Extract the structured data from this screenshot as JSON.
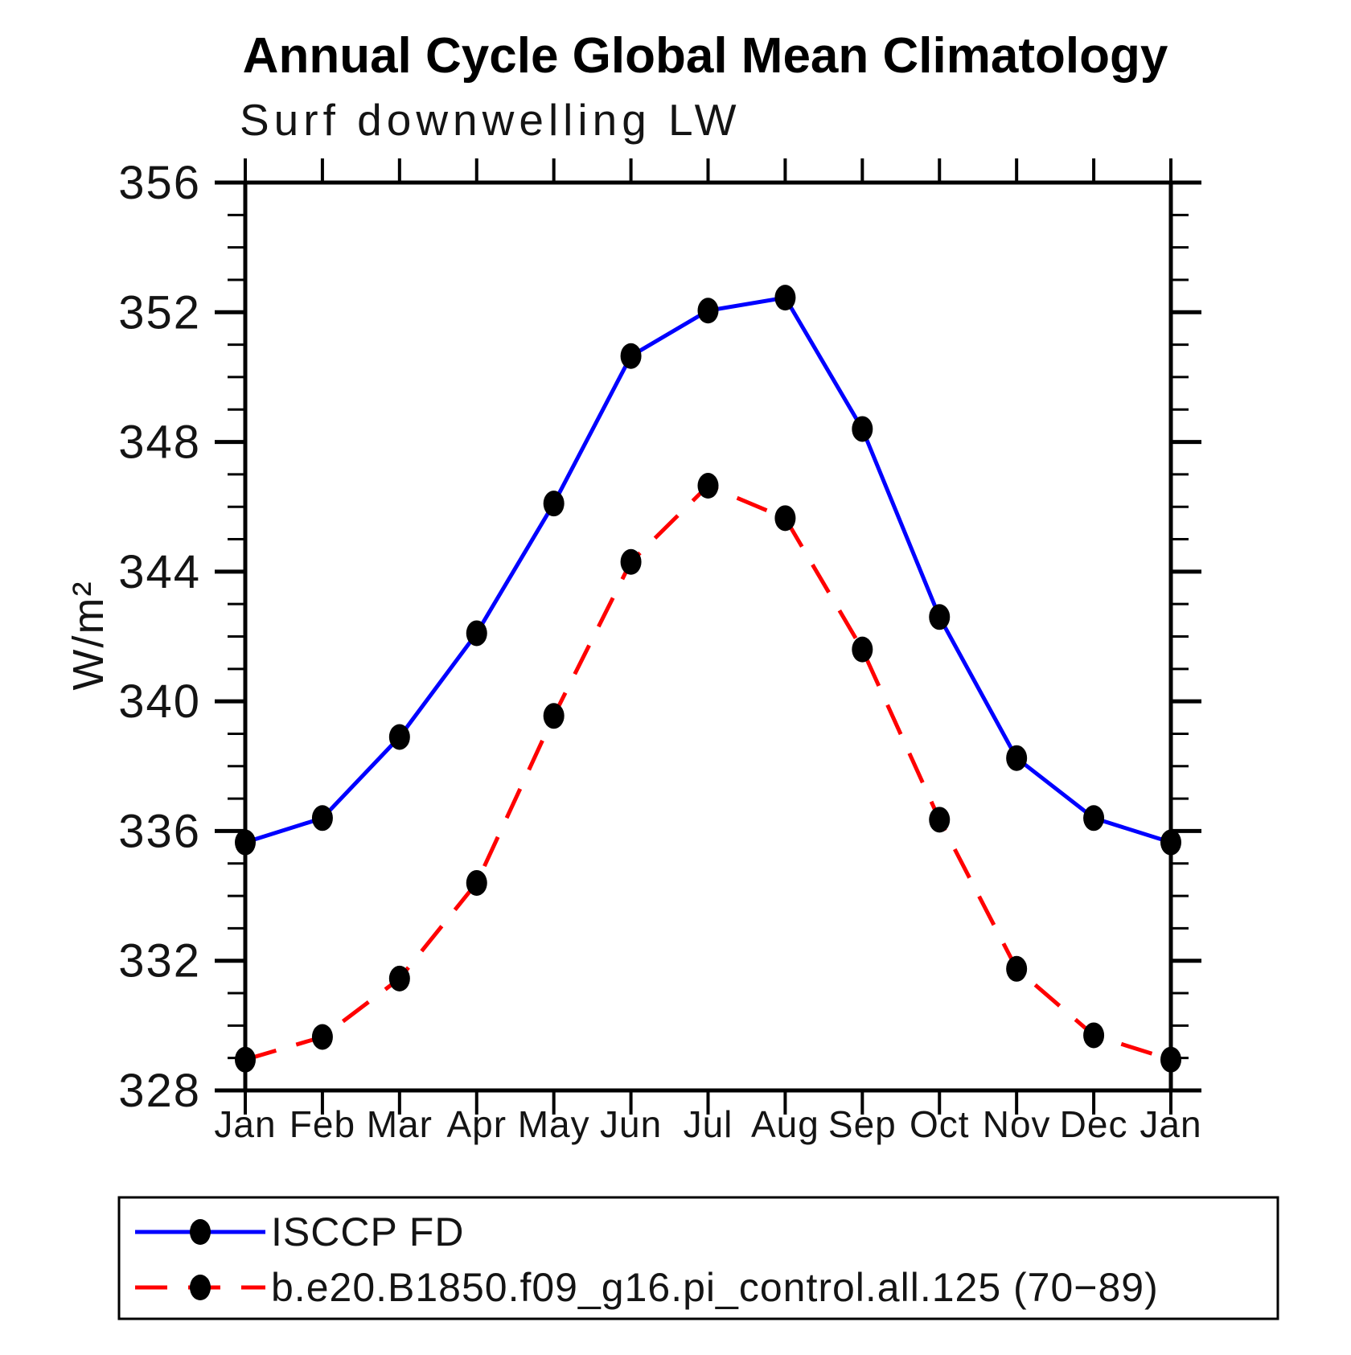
{
  "page": {
    "background_color": "#ffffff",
    "frame_color": "#000000"
  },
  "chart_data": {
    "type": "line",
    "title": "Annual Cycle Global Mean Climatology",
    "subtitle": "Surf downwelling LW",
    "ylabel": "W/m²",
    "xlabel": "",
    "categories": [
      "Jan",
      "Feb",
      "Mar",
      "Apr",
      "May",
      "Jun",
      "Jul",
      "Aug",
      "Sep",
      "Oct",
      "Nov",
      "Dec",
      "Jan"
    ],
    "series": [
      {
        "name": "ISCCP FD",
        "color": "#0000ff",
        "line_style": "solid",
        "marker": "circle",
        "marker_color": "#000000",
        "values": [
          335.65,
          336.4,
          338.9,
          342.1,
          346.1,
          350.65,
          352.05,
          352.45,
          348.4,
          342.6,
          338.25,
          336.4,
          335.65
        ]
      },
      {
        "name": "b.e20.B1850.f09_g16.pi_control.all.125 (70−89)",
        "color": "#ff0000",
        "line_style": "dashed",
        "marker": "circle",
        "marker_color": "#000000",
        "values": [
          328.95,
          329.65,
          331.45,
          334.4,
          339.55,
          344.3,
          346.65,
          345.65,
          341.6,
          336.35,
          331.75,
          329.7,
          328.95
        ]
      }
    ],
    "ylim": [
      328,
      356
    ],
    "ytick_major_step": 4,
    "ytick_minor_step": 1,
    "ytick_labels": [
      "328",
      "332",
      "336",
      "340",
      "344",
      "348",
      "352",
      "356"
    ],
    "grid": false,
    "legend_position": "bottom",
    "tick_direction": "out"
  }
}
